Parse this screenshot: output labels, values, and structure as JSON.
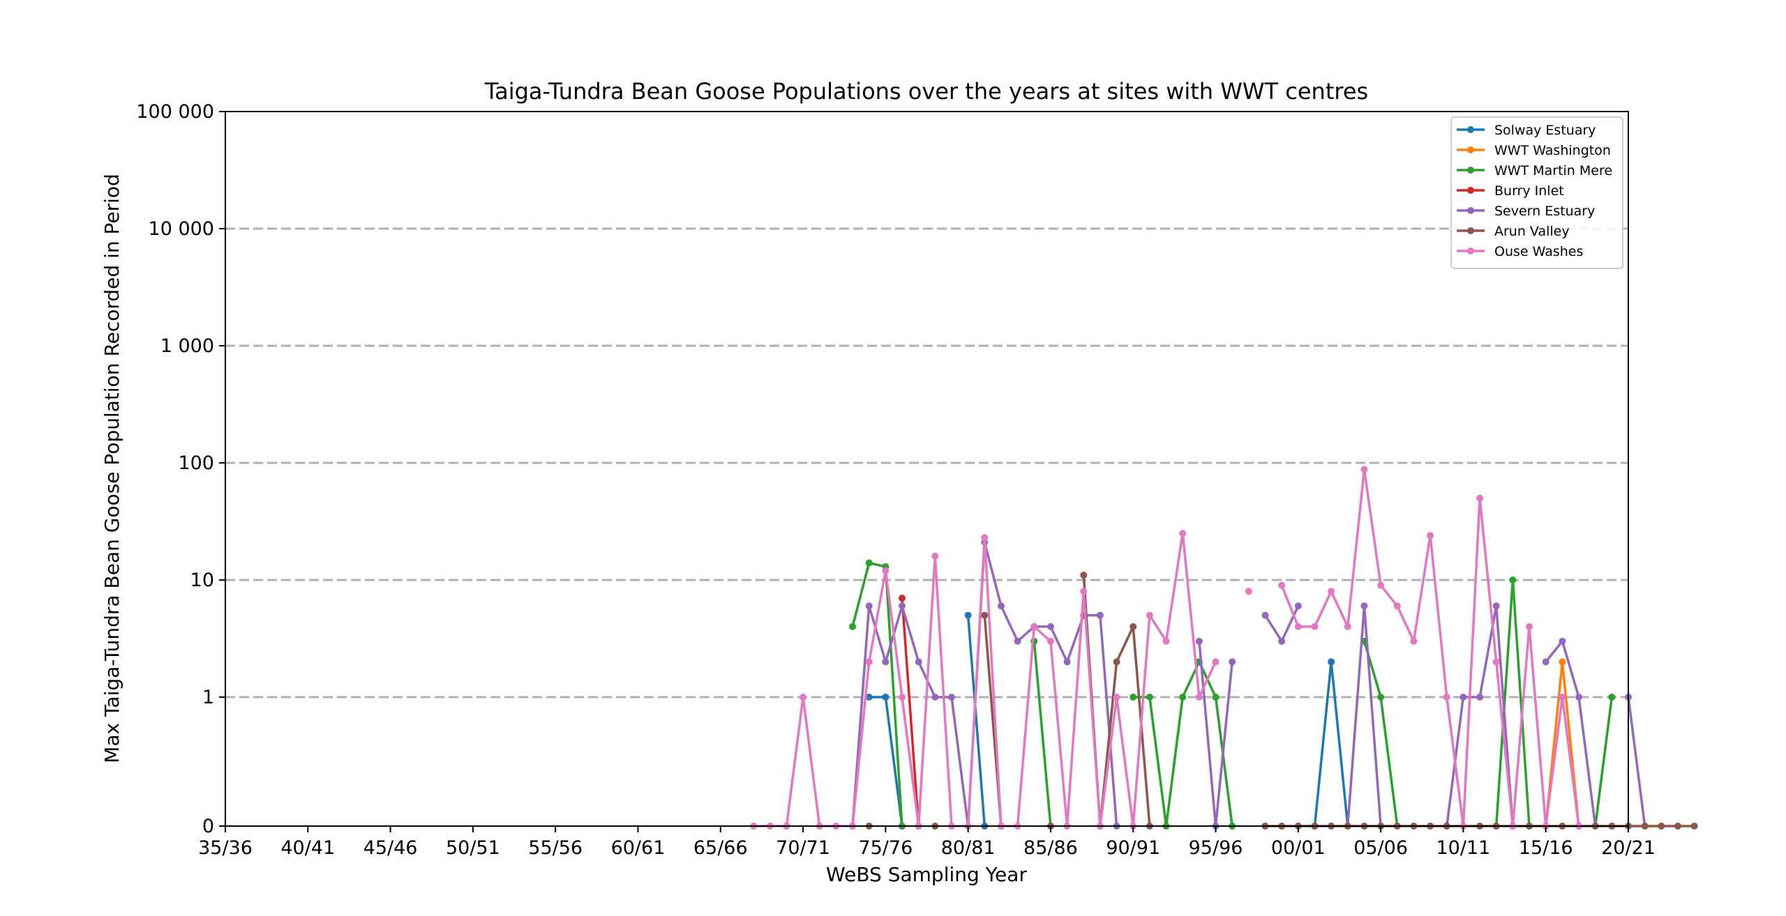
{
  "chart_data": {
    "type": "line",
    "title": "Taiga-Tundra Bean Goose Populations over the years at sites with WWT centres",
    "xlabel": "WeBS Sampling Year",
    "ylabel": "Max Taiga-Tundra Bean Goose Population Recorded in Period",
    "x_scale": "season",
    "y_scale": "symlog",
    "x_ticks": [
      "35/36",
      "40/41",
      "45/46",
      "50/51",
      "55/56",
      "60/61",
      "65/66",
      "70/71",
      "75/76",
      "80/81",
      "85/86",
      "90/91",
      "95/96",
      "00/01",
      "05/06",
      "10/11",
      "15/16",
      "20/21"
    ],
    "xlim": [
      "35/36",
      "20/21"
    ],
    "y_ticks": [
      0,
      1,
      10,
      100,
      1000,
      10000,
      100000
    ],
    "y_tick_labels": [
      "0",
      "1",
      "10",
      "100",
      "1 000",
      "10 000",
      "100 000"
    ],
    "ylim": [
      0,
      100000
    ],
    "grid": "horizontal dashed",
    "legend_position": "top-right",
    "series": [
      {
        "name": "Solway Estuary",
        "color": "#1f77b4",
        "start": "74/75",
        "values": [
          1,
          1,
          0,
          null,
          null,
          null,
          5,
          0,
          null,
          null,
          null,
          null,
          null,
          null,
          null,
          null,
          null,
          null,
          null,
          null,
          null,
          null,
          null,
          null,
          null,
          null,
          null,
          0,
          2,
          0
        ]
      },
      {
        "name": "WWT Washington",
        "color": "#ff7f0e",
        "start": "15/16",
        "values": [
          0,
          2,
          0
        ]
      },
      {
        "name": "WWT Martin Mere",
        "color": "#2ca02c",
        "start": "73/74",
        "values": [
          4,
          14,
          13,
          0,
          null,
          null,
          null,
          null,
          null,
          null,
          null,
          3,
          0,
          null,
          null,
          null,
          null,
          1,
          1,
          0,
          1,
          2,
          1,
          0,
          null,
          null,
          null,
          null,
          null,
          null,
          null,
          3,
          1,
          0,
          null,
          null,
          null,
          null,
          null,
          0,
          10,
          0,
          null,
          null,
          null,
          0,
          1
        ]
      },
      {
        "name": "Burry Inlet",
        "color": "#d62728",
        "start": "76/77",
        "values": [
          7,
          0
        ]
      },
      {
        "name": "Severn Estuary",
        "color": "#9467bd",
        "start": "73/74",
        "values": [
          0,
          6,
          2,
          6,
          2,
          1,
          1,
          0,
          21,
          6,
          3,
          4,
          4,
          2,
          5,
          5,
          0,
          null,
          null,
          null,
          null,
          3,
          0,
          2,
          null,
          5,
          3,
          6,
          null,
          null,
          0,
          6,
          0,
          null,
          null,
          null,
          0,
          1,
          1,
          6,
          0,
          null,
          2,
          3,
          1,
          0,
          null,
          1,
          0
        ]
      },
      {
        "name": "Arun Valley",
        "color": "#8c564b",
        "start": "69/70",
        "values": [
          0,
          null,
          null,
          null,
          null,
          0,
          null,
          null,
          null,
          0,
          null,
          null,
          5,
          0,
          null,
          null,
          0,
          null,
          11,
          0,
          2,
          4,
          0,
          null,
          null,
          null,
          null,
          null,
          null,
          0,
          0,
          0,
          0,
          0,
          0,
          0,
          0,
          0,
          0,
          0,
          0,
          0,
          0,
          0,
          0,
          0,
          0,
          0,
          0,
          0,
          0,
          0,
          0,
          0,
          0,
          0
        ]
      },
      {
        "name": "Ouse Washes",
        "color": "#e377c2",
        "start": "67/68",
        "values": [
          0,
          0,
          0,
          1,
          0,
          0,
          0,
          2,
          12,
          1,
          0,
          16,
          0,
          0,
          23,
          0,
          0,
          4,
          3,
          0,
          8,
          0,
          1,
          0,
          5,
          3,
          25,
          1,
          2,
          null,
          8,
          null,
          9,
          4,
          4,
          8,
          4,
          88,
          9,
          6,
          3,
          24,
          1,
          0,
          50,
          2,
          0,
          4,
          0,
          1,
          0
        ]
      }
    ]
  }
}
